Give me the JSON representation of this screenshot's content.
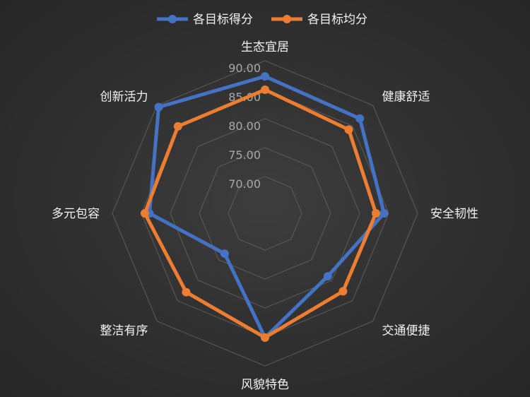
{
  "chart_data": {
    "type": "radar",
    "categories": [
      "生态宜居",
      "健康舒适",
      "安全韧性",
      "交通便捷",
      "风貌特色",
      "整洁有序",
      "多元包容",
      "创新活力"
    ],
    "series": [
      {
        "name": "各目标得分",
        "color": "#4472c4",
        "values": [
          87.3,
          86.8,
          84.2,
          79.0,
          85.1,
          73.5,
          83.6,
          89.6
        ]
      },
      {
        "name": "各目标均分",
        "color": "#ed7d31",
        "values": [
          85.0,
          84.1,
          82.8,
          82.7,
          85.1,
          82.9,
          84.4,
          84.9
        ]
      }
    ],
    "rlim": [
      70,
      90
    ],
    "ticks": [
      "70.00",
      "75.00",
      "80.00",
      "85.00",
      "90.00"
    ],
    "tick_values": [
      70,
      75,
      80,
      85,
      90
    ],
    "grid": true,
    "legend_position": "top"
  }
}
